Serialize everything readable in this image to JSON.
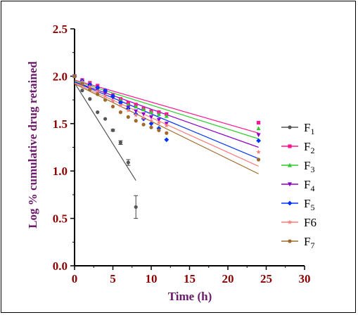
{
  "chart_data": {
    "type": "scatter",
    "xlabel": "Time (h)",
    "ylabel": "Log % cumulative drug retained",
    "xlim": [
      0,
      30
    ],
    "ylim": [
      0,
      2.5
    ],
    "xticks": [
      "0",
      "5",
      "10",
      "15",
      "20",
      "25",
      "30"
    ],
    "yticks": [
      "0.0",
      "0.5",
      "1.0",
      "1.5",
      "2.0",
      "2.5"
    ],
    "grid": false,
    "legend_position": "right",
    "series": [
      {
        "name": "F",
        "sub": "1",
        "color": "#555555",
        "marker": "circle",
        "x": [
          0,
          1,
          2,
          3,
          4,
          5,
          6,
          7,
          8
        ],
        "y": [
          2.0,
          1.85,
          1.76,
          1.62,
          1.55,
          1.43,
          1.3,
          1.09,
          0.62
        ],
        "err": [
          0,
          0,
          0,
          0,
          0,
          0.01,
          0.02,
          0.03,
          0.12
        ],
        "fit": [
          [
            0,
            1.93
          ],
          [
            8,
            0.9
          ]
        ]
      },
      {
        "name": "F",
        "sub": "2",
        "color": "#FF1493",
        "marker": "square",
        "x": [
          0,
          1,
          2,
          3,
          4,
          5,
          6,
          7,
          8,
          9,
          10,
          11,
          12,
          24
        ],
        "y": [
          2.0,
          1.96,
          1.93,
          1.9,
          1.85,
          1.8,
          1.76,
          1.72,
          1.7,
          1.66,
          1.63,
          1.62,
          1.6,
          1.51
        ],
        "fit": [
          [
            0,
            1.96
          ],
          [
            24,
            1.4
          ]
        ]
      },
      {
        "name": "F",
        "sub": "3",
        "color": "#2ECC2E",
        "marker": "triangle-up",
        "x": [
          0,
          1,
          2,
          3,
          4,
          5,
          6,
          7,
          8,
          9,
          10,
          11,
          12,
          24
        ],
        "y": [
          2.0,
          1.95,
          1.92,
          1.88,
          1.84,
          1.79,
          1.75,
          1.7,
          1.68,
          1.65,
          1.62,
          1.6,
          1.58,
          1.45
        ],
        "fit": [
          [
            0,
            1.95
          ],
          [
            24,
            1.34
          ]
        ]
      },
      {
        "name": "F",
        "sub": "4",
        "color": "#8B00C8",
        "marker": "triangle-down",
        "x": [
          0,
          1,
          2,
          3,
          4,
          5,
          6,
          7,
          8,
          9,
          10,
          11,
          12,
          24
        ],
        "y": [
          2.0,
          1.94,
          1.9,
          1.86,
          1.82,
          1.77,
          1.72,
          1.67,
          1.63,
          1.6,
          1.57,
          1.54,
          1.5,
          1.38
        ],
        "fit": [
          [
            0,
            1.94
          ],
          [
            24,
            1.25
          ]
        ]
      },
      {
        "name": "F",
        "sub": "5",
        "color": "#0033FF",
        "marker": "diamond",
        "x": [
          0,
          1,
          2,
          3,
          4,
          5,
          6,
          7,
          8,
          9,
          10,
          11,
          12,
          24
        ],
        "y": [
          2.0,
          1.95,
          1.91,
          1.88,
          1.85,
          1.79,
          1.72,
          1.66,
          1.6,
          1.55,
          1.5,
          1.45,
          1.33,
          1.32
        ],
        "fit": [
          [
            0,
            1.94
          ],
          [
            24,
            1.13
          ]
        ]
      },
      {
        "name": "F6",
        "sub": "",
        "color": "#FF7A7A",
        "marker": "star",
        "x": [
          0,
          1,
          2,
          3,
          4,
          5,
          6,
          7,
          8,
          9,
          10,
          11,
          12,
          24
        ],
        "y": [
          2.0,
          1.94,
          1.89,
          1.84,
          1.79,
          1.74,
          1.69,
          1.64,
          1.59,
          1.56,
          1.53,
          1.51,
          1.48,
          1.2
        ],
        "fit": [
          [
            0,
            1.93
          ],
          [
            24,
            1.05
          ]
        ]
      },
      {
        "name": "F",
        "sub": "7",
        "color": "#A0692A",
        "marker": "circle",
        "x": [
          0,
          1,
          2,
          3,
          4,
          5,
          6,
          7,
          8,
          9,
          10,
          11,
          12,
          24
        ],
        "y": [
          2.0,
          1.92,
          1.86,
          1.81,
          1.75,
          1.68,
          1.62,
          1.57,
          1.53,
          1.49,
          1.46,
          1.43,
          1.4,
          1.12
        ],
        "fit": [
          [
            0,
            1.92
          ],
          [
            24,
            0.97
          ]
        ]
      }
    ]
  }
}
